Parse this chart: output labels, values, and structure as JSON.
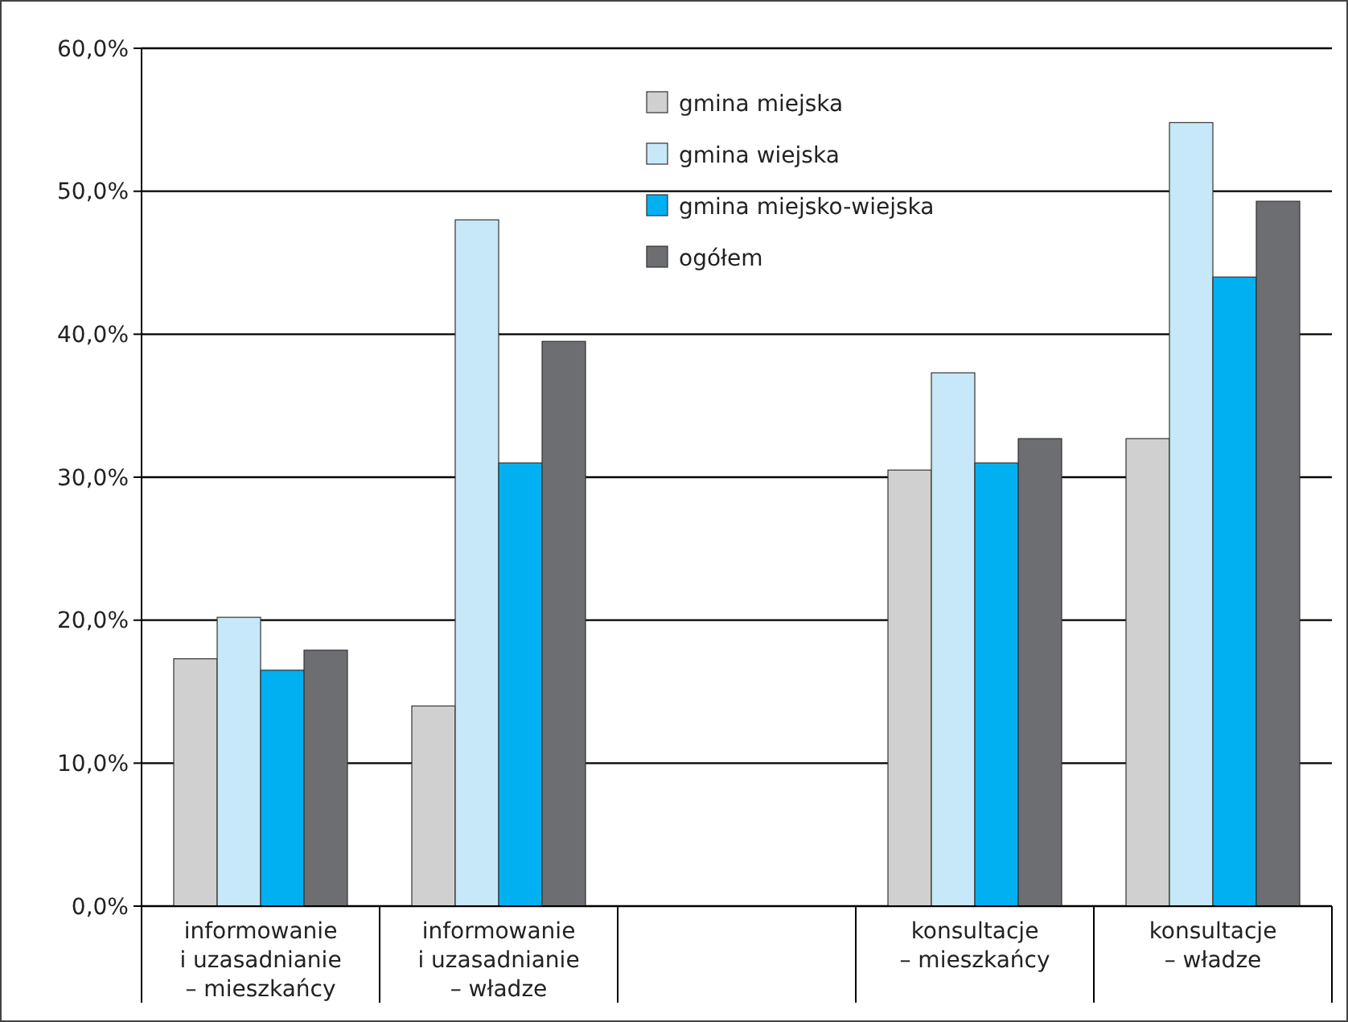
{
  "chart_data": {
    "type": "bar",
    "categories": [
      "informowanie\ni uzasadnianie\n– mieszkańcy",
      "informowanie\ni uzasadnianie\n– władze",
      null,
      "konsultacje\n– mieszkańcy",
      "konsultacje\n– władze"
    ],
    "series": [
      {
        "name": "gmina miejska",
        "color": "#d0d0d0",
        "values": [
          17.3,
          14.0,
          null,
          30.5,
          32.7
        ]
      },
      {
        "name": "gmina wiejska",
        "color": "#c7e8f8",
        "values": [
          20.2,
          48.0,
          null,
          37.3,
          54.8
        ]
      },
      {
        "name": "gmina miejsko-wiejska",
        "color": "#00b0f0",
        "values": [
          16.5,
          31.0,
          null,
          31.0,
          44.0
        ]
      },
      {
        "name": "ogółem",
        "color": "#6d6e71",
        "values": [
          17.9,
          39.5,
          null,
          32.7,
          49.3
        ]
      }
    ],
    "ylim": [
      0,
      60
    ],
    "yticks": [
      {
        "value": 0,
        "label": "0,0%"
      },
      {
        "value": 10,
        "label": "10,0%"
      },
      {
        "value": 20,
        "label": "20,0%"
      },
      {
        "value": 30,
        "label": "30,0%"
      },
      {
        "value": 40,
        "label": "40,0%"
      },
      {
        "value": 50,
        "label": "50,0%"
      },
      {
        "value": 60,
        "label": "60,0%"
      }
    ],
    "grid": "y",
    "legend": "top"
  }
}
